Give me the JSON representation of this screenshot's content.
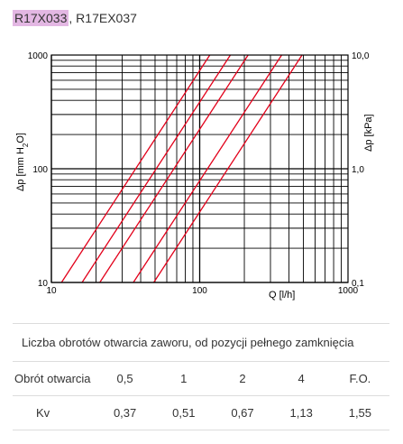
{
  "header": {
    "code_primary": "R17X033",
    "separator": ", ",
    "code_secondary": "R17EX037"
  },
  "chart_data": {
    "type": "line",
    "xscale": "log",
    "yscale": "log",
    "xlim": [
      10,
      1000
    ],
    "ylim": [
      10,
      1000
    ],
    "y2lim": [
      0.1,
      10.0
    ],
    "xlabel": "Q [l/h]",
    "ylabel_main": "Δp [mm H",
    "ylabel_sub": "2",
    "ylabel_end": "O]",
    "y2label": "Δp [kPa]",
    "x_ticks": [
      "10",
      "100",
      "1000"
    ],
    "y_ticks": [
      "10",
      "100",
      "1000"
    ],
    "y2_ticks": [
      "0,1",
      "1,0",
      "10,0"
    ],
    "grid": true,
    "line_color": "#e2001a",
    "series": [
      {
        "kv": 0.37,
        "points": [
          [
            11.7,
            10
          ],
          [
            117,
            1000
          ]
        ]
      },
      {
        "kv": 0.51,
        "points": [
          [
            16.1,
            10
          ],
          [
            161,
            1000
          ]
        ]
      },
      {
        "kv": 0.67,
        "points": [
          [
            21.2,
            10
          ],
          [
            212,
            1000
          ]
        ]
      },
      {
        "kv": 1.13,
        "points": [
          [
            35.7,
            10
          ],
          [
            357,
            1000
          ]
        ]
      },
      {
        "kv": 1.55,
        "points": [
          [
            49.0,
            10
          ],
          [
            490,
            1000
          ]
        ]
      }
    ]
  },
  "table": {
    "caption": "Liczba obrotów otwarcia zaworu, od pozycji pełnego zamknięcia",
    "rows": [
      {
        "label": "Obrót otwarcia",
        "values": [
          "0,5",
          "1",
          "2",
          "4",
          "F.O."
        ]
      },
      {
        "label": "Kv",
        "values": [
          "0,37",
          "0,51",
          "0,67",
          "1,13",
          "1,55"
        ]
      }
    ]
  }
}
